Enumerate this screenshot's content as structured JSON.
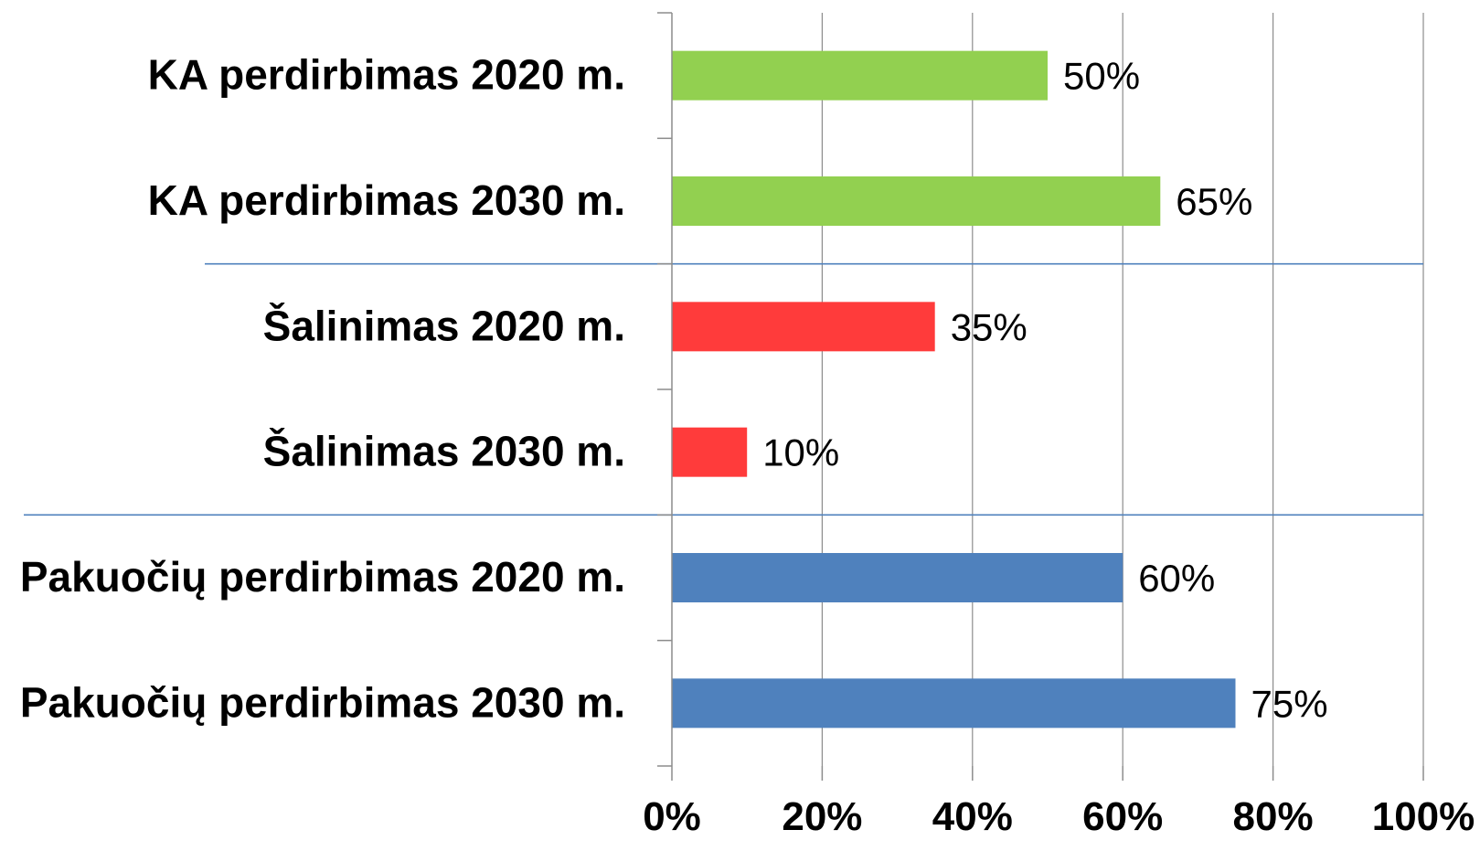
{
  "chart_data": {
    "type": "bar",
    "orientation": "horizontal",
    "categories": [
      "KA perdirbimas 2020 m.",
      "KA perdirbimas 2030 m.",
      "Šalinimas 2020 m.",
      "Šalinimas 2030 m.",
      "Pakuočių perdirbimas 2020 m.",
      "Pakuočių perdirbimas 2030 m."
    ],
    "values": [
      50,
      65,
      35,
      10,
      60,
      75
    ],
    "data_labels": [
      "50%",
      "65%",
      "35%",
      "10%",
      "60%",
      "75%"
    ],
    "bar_colors": [
      "#92d050",
      "#92d050",
      "#ff3b3b",
      "#ff3b3b",
      "#4f81bd",
      "#4f81bd"
    ],
    "xlim": [
      0,
      100
    ],
    "xticks": [
      0,
      20,
      40,
      60,
      80,
      100
    ],
    "xtick_labels": [
      "0%",
      "20%",
      "40%",
      "60%",
      "80%",
      "100%"
    ],
    "grid": true,
    "group_separators": [
      2,
      4
    ],
    "separator_color": "#4f81bd",
    "title": "",
    "xlabel": "",
    "ylabel": ""
  }
}
